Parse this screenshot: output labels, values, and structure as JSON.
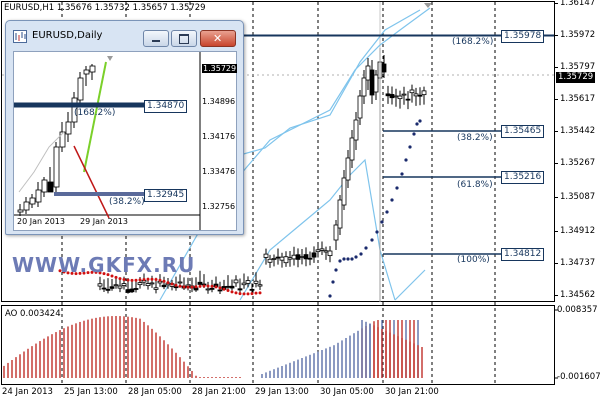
{
  "header": {
    "symbol_period": "EURUSD,H1",
    "ohlc": "1.35676 1.35732 1.35657 1.35729"
  },
  "price_axis": {
    "labels": [
      "1.36147",
      "1.35972",
      "1.35797",
      "1.35617",
      "1.35442",
      "1.35267",
      "1.35087",
      "1.34912",
      "1.34737",
      "1.34562"
    ],
    "current": "1.35729"
  },
  "time_axis": {
    "labels": [
      "24 Jan 2013",
      "25 Jan 13:00",
      "28 Jan 05:00",
      "28 Jan 21:00",
      "29 Jan 13:00",
      "30 Jan 05:00",
      "30 Jan 21:00"
    ]
  },
  "levels": [
    {
      "price": "1.35978",
      "pct": "(168.2%)"
    },
    {
      "price": "1.35465",
      "pct": "(38.2%)"
    },
    {
      "price": "1.35216",
      "pct": "(61.8%)"
    },
    {
      "price": "1.34812",
      "pct": "(100%)"
    }
  ],
  "indicator": {
    "label": "AO 0.003424",
    "max": "0.008357",
    "min": "-0.001607"
  },
  "watermark": "WWW.GKFX.RU",
  "daily_window": {
    "title": "EURUSD,Daily",
    "price_labels": [
      "1.35729",
      "1.34896",
      "1.34176",
      "1.33476",
      "1.32756"
    ],
    "levels": [
      {
        "price": "1.34870",
        "pct": "(168.2%)"
      },
      {
        "price": "1.32945",
        "pct": "(38.2%)"
      }
    ],
    "time_labels": [
      "20 Jan 2013",
      "29 Jan 2013"
    ]
  },
  "colors": {
    "level_line": "#17365d",
    "bull_bar": "#5a6fa8",
    "bear_bar": "#c0312a",
    "sar_dot": "#1a2a6c",
    "sar_red": "#d01010",
    "band": "#7fc4ec"
  }
}
